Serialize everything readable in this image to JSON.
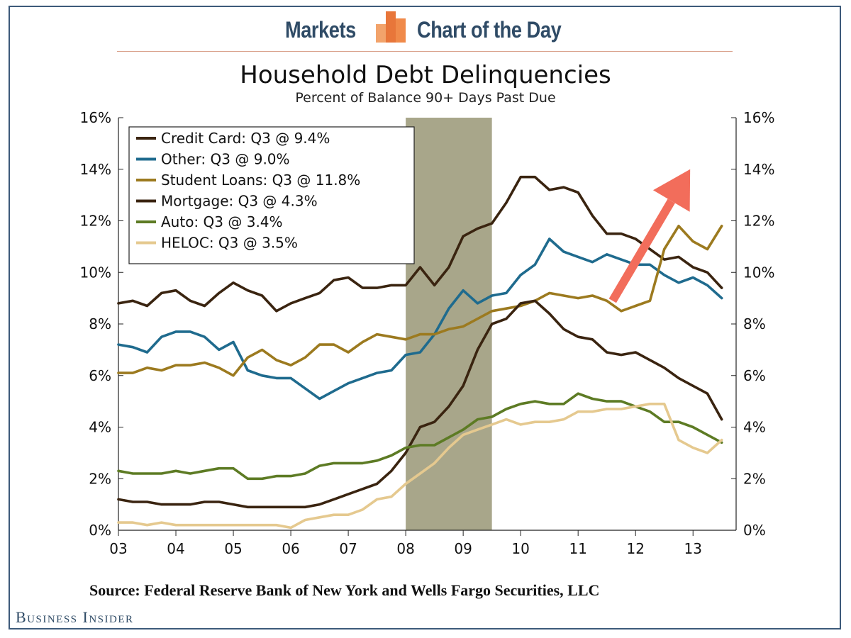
{
  "header": {
    "left_label": "Markets",
    "right_label": "Chart of the Day",
    "logo_icon": "bar-chart-icon",
    "accent_color": "#e8763a"
  },
  "source_text": "Source: Federal Reserve Bank of New York and Wells Fargo Securities, LLC",
  "brand_text": "Business Insider",
  "chart_data": {
    "type": "line",
    "title": "Household Debt Delinquencies",
    "subtitle": "Percent of Balance 90+ Days Past Due",
    "xlabel": "",
    "ylabel": "",
    "x_range": [
      2003,
      2013.75
    ],
    "ylim": [
      0,
      16
    ],
    "y_ticks": [
      "0%",
      "2%",
      "4%",
      "6%",
      "8%",
      "10%",
      "12%",
      "14%",
      "16%"
    ],
    "x_ticks": [
      "03",
      "04",
      "05",
      "06",
      "07",
      "08",
      "09",
      "10",
      "11",
      "12",
      "13"
    ],
    "grid": false,
    "legend_position": "top-left",
    "recession": [
      2008.0,
      2009.5
    ],
    "recession_color": "#a8a68a",
    "trend_arrow": {
      "color": "#f26d5b",
      "from": [
        2011.6,
        8.9
      ],
      "to": [
        2012.95,
        14.0
      ]
    },
    "x": [
      2003.0,
      2003.25,
      2003.5,
      2003.75,
      2004.0,
      2004.25,
      2004.5,
      2004.75,
      2005.0,
      2005.25,
      2005.5,
      2005.75,
      2006.0,
      2006.25,
      2006.5,
      2006.75,
      2007.0,
      2007.25,
      2007.5,
      2007.75,
      2008.0,
      2008.25,
      2008.5,
      2008.75,
      2009.0,
      2009.25,
      2009.5,
      2009.75,
      2010.0,
      2010.25,
      2010.5,
      2010.75,
      2011.0,
      2011.25,
      2011.5,
      2011.75,
      2012.0,
      2012.25,
      2012.5,
      2012.75,
      2013.0,
      2013.25,
      2013.5
    ],
    "series": [
      {
        "name": "Credit Card: Q3 @ 9.4%",
        "color": "#3a2410",
        "values": [
          8.8,
          8.9,
          8.7,
          9.2,
          9.3,
          8.9,
          8.7,
          9.2,
          9.6,
          9.3,
          9.1,
          8.5,
          8.8,
          9.0,
          9.2,
          9.7,
          9.8,
          9.4,
          9.4,
          9.5,
          9.5,
          10.2,
          9.5,
          10.2,
          11.4,
          11.7,
          11.9,
          12.7,
          13.7,
          13.7,
          13.2,
          13.3,
          13.1,
          12.2,
          11.5,
          11.5,
          11.3,
          10.9,
          10.5,
          10.6,
          10.2,
          10.0,
          9.4
        ]
      },
      {
        "name": "Other: Q3 @ 9.0%",
        "color": "#1f6b8e",
        "values": [
          7.2,
          7.1,
          6.9,
          7.5,
          7.7,
          7.7,
          7.5,
          7.0,
          7.3,
          6.2,
          6.0,
          5.9,
          5.9,
          5.5,
          5.1,
          5.4,
          5.7,
          5.9,
          6.1,
          6.2,
          6.8,
          6.9,
          7.6,
          8.6,
          9.3,
          8.8,
          9.1,
          9.2,
          9.9,
          10.3,
          11.3,
          10.8,
          10.6,
          10.4,
          10.7,
          10.5,
          10.3,
          10.3,
          9.9,
          9.6,
          9.8,
          9.5,
          9.0
        ]
      },
      {
        "name": "Student Loans: Q3 @ 11.8%",
        "color": "#9c7a1f",
        "values": [
          6.1,
          6.1,
          6.3,
          6.2,
          6.4,
          6.4,
          6.5,
          6.3,
          6.0,
          6.7,
          7.0,
          6.6,
          6.4,
          6.7,
          7.2,
          7.2,
          6.9,
          7.3,
          7.6,
          7.5,
          7.4,
          7.6,
          7.6,
          7.8,
          7.9,
          8.2,
          8.5,
          8.6,
          8.7,
          8.9,
          9.2,
          9.1,
          9.0,
          9.1,
          8.9,
          8.5,
          8.7,
          8.9,
          10.9,
          11.8,
          11.2,
          10.9,
          11.8
        ]
      },
      {
        "name": "Mortgage: Q3 @ 4.3%",
        "color": "#3a2410",
        "values": [
          1.2,
          1.1,
          1.1,
          1.0,
          1.0,
          1.0,
          1.1,
          1.1,
          1.0,
          0.9,
          0.9,
          0.9,
          0.9,
          0.9,
          1.0,
          1.2,
          1.4,
          1.6,
          1.8,
          2.3,
          3.0,
          4.0,
          4.2,
          4.8,
          5.6,
          7.0,
          8.0,
          8.2,
          8.8,
          8.9,
          8.4,
          7.8,
          7.5,
          7.4,
          6.9,
          6.8,
          6.9,
          6.6,
          6.3,
          5.9,
          5.6,
          5.3,
          4.3
        ]
      },
      {
        "name": "Auto: Q3 @ 3.4%",
        "color": "#5d7b24",
        "values": [
          2.3,
          2.2,
          2.2,
          2.2,
          2.3,
          2.2,
          2.3,
          2.4,
          2.4,
          2.0,
          2.0,
          2.1,
          2.1,
          2.2,
          2.5,
          2.6,
          2.6,
          2.6,
          2.7,
          2.9,
          3.2,
          3.3,
          3.3,
          3.6,
          3.9,
          4.3,
          4.4,
          4.7,
          4.9,
          5.0,
          4.9,
          4.9,
          5.3,
          5.1,
          5.0,
          5.0,
          4.8,
          4.6,
          4.2,
          4.2,
          4.0,
          3.7,
          3.4
        ]
      },
      {
        "name": "HELOC: Q3 @ 3.5%",
        "color": "#e5c98f",
        "values": [
          0.3,
          0.3,
          0.2,
          0.3,
          0.2,
          0.2,
          0.2,
          0.2,
          0.2,
          0.2,
          0.2,
          0.2,
          0.1,
          0.4,
          0.5,
          0.6,
          0.6,
          0.8,
          1.2,
          1.3,
          1.8,
          2.2,
          2.6,
          3.2,
          3.7,
          3.9,
          4.1,
          4.3,
          4.1,
          4.2,
          4.2,
          4.3,
          4.6,
          4.6,
          4.7,
          4.7,
          4.8,
          4.9,
          4.9,
          3.5,
          3.2,
          3.0,
          3.5
        ]
      }
    ]
  }
}
